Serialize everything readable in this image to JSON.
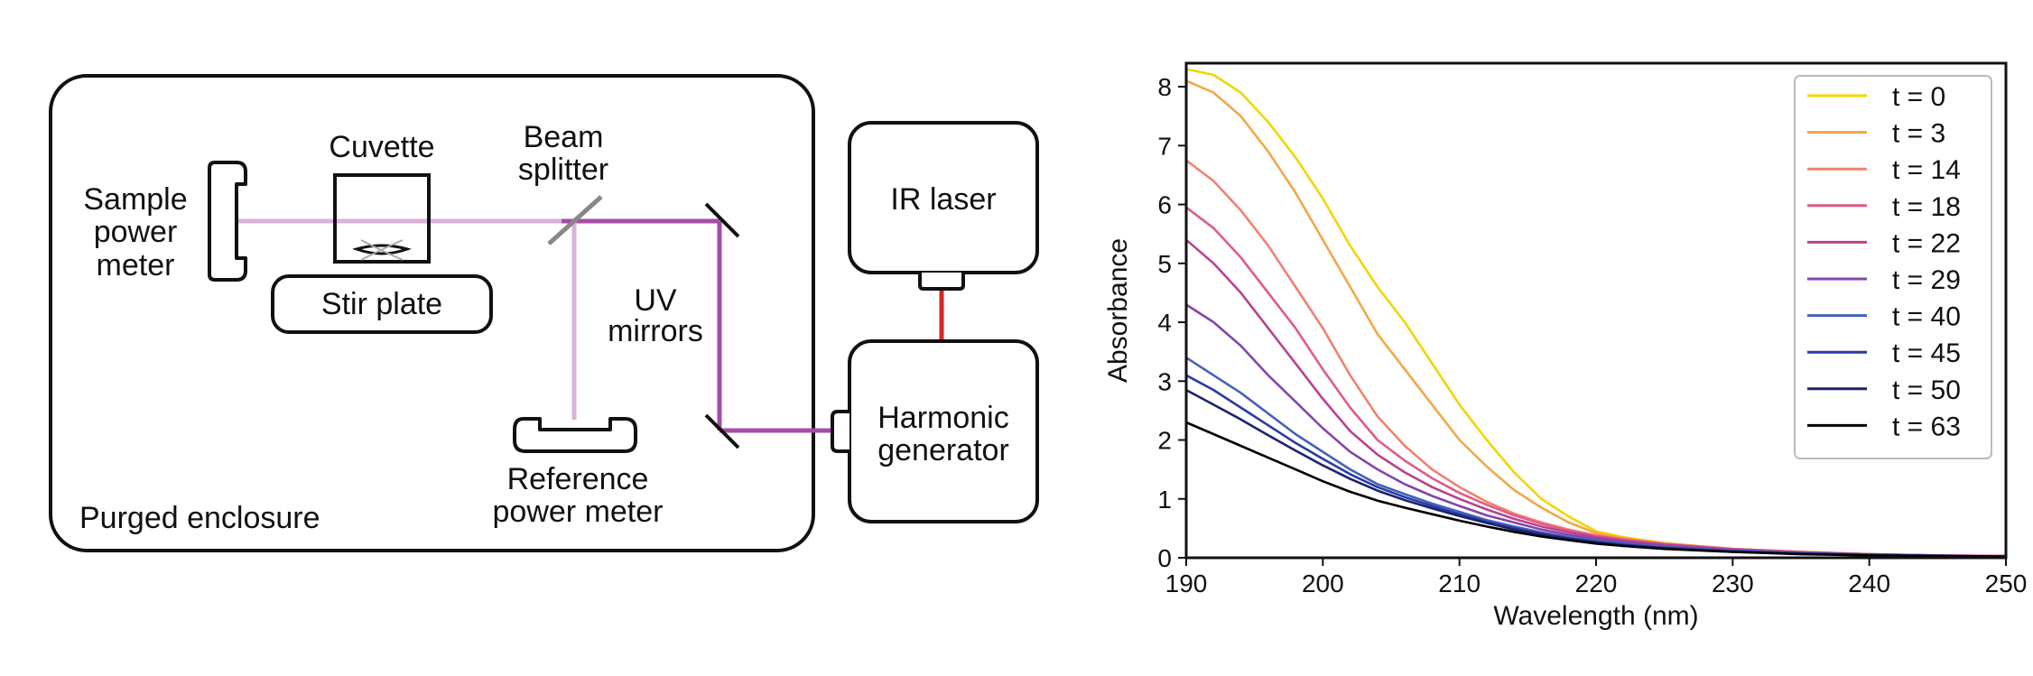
{
  "diagram": {
    "labels": {
      "cuvette": "Cuvette",
      "beam_splitter_1": "Beam",
      "beam_splitter_2": "splitter",
      "sample_pm_1": "Sample",
      "sample_pm_2": "power",
      "sample_pm_3": "meter",
      "stir_plate": "Stir plate",
      "uv_mirrors_1": "UV",
      "uv_mirrors_2": "mirrors",
      "reference_pm_1": "Reference",
      "reference_pm_2": "power meter",
      "purged_enclosure": "Purged enclosure",
      "ir_laser": "IR laser",
      "harmonic_1": "Harmonic",
      "harmonic_2": "generator"
    },
    "colors": {
      "ir_beam": "#d62728",
      "uv_beam": "#a64ca6",
      "uv_beam_light": "#d9b3d9",
      "outline": "#111111",
      "splitter": "#888888"
    }
  },
  "chart_data": {
    "type": "line",
    "xlabel": "Wavelength (nm)",
    "ylabel": "Absorbance",
    "xlim": [
      190,
      250
    ],
    "ylim": [
      0,
      8.4
    ],
    "xticks": [
      190,
      200,
      210,
      220,
      230,
      240,
      250
    ],
    "yticks": [
      0,
      1,
      2,
      3,
      4,
      5,
      6,
      7,
      8
    ],
    "grid": false,
    "legend_position": "top-right",
    "x": [
      190,
      192,
      194,
      196,
      198,
      200,
      202,
      204,
      206,
      208,
      210,
      212,
      214,
      216,
      218,
      220,
      222,
      225,
      230,
      235,
      240,
      245,
      250
    ],
    "series": [
      {
        "name": "t = 0",
        "color": "#f2d600",
        "values": [
          8.3,
          8.2,
          7.9,
          7.4,
          6.8,
          6.1,
          5.3,
          4.6,
          4.0,
          3.3,
          2.6,
          2.0,
          1.45,
          1.0,
          0.7,
          0.45,
          0.35,
          0.25,
          0.15,
          0.1,
          0.06,
          0.04,
          0.03
        ]
      },
      {
        "name": "t = 3",
        "color": "#f2a848",
        "values": [
          8.1,
          7.9,
          7.5,
          6.9,
          6.2,
          5.4,
          4.6,
          3.8,
          3.2,
          2.6,
          2.0,
          1.55,
          1.15,
          0.85,
          0.6,
          0.42,
          0.33,
          0.24,
          0.15,
          0.1,
          0.06,
          0.04,
          0.03
        ]
      },
      {
        "name": "t = 14",
        "color": "#f0826e",
        "values": [
          6.75,
          6.4,
          5.9,
          5.3,
          4.6,
          3.9,
          3.1,
          2.4,
          1.9,
          1.5,
          1.2,
          0.95,
          0.75,
          0.6,
          0.48,
          0.38,
          0.32,
          0.24,
          0.15,
          0.1,
          0.06,
          0.04,
          0.03
        ]
      },
      {
        "name": "t = 18",
        "color": "#e05a8c",
        "values": [
          5.95,
          5.6,
          5.1,
          4.5,
          3.9,
          3.2,
          2.55,
          2.0,
          1.65,
          1.35,
          1.1,
          0.9,
          0.72,
          0.58,
          0.46,
          0.37,
          0.31,
          0.23,
          0.15,
          0.1,
          0.06,
          0.04,
          0.03
        ]
      },
      {
        "name": "t = 22",
        "color": "#b8438c",
        "values": [
          5.4,
          5.0,
          4.5,
          3.9,
          3.3,
          2.7,
          2.15,
          1.75,
          1.45,
          1.2,
          1.0,
          0.82,
          0.66,
          0.53,
          0.43,
          0.35,
          0.29,
          0.22,
          0.14,
          0.09,
          0.06,
          0.04,
          0.03
        ]
      },
      {
        "name": "t = 29",
        "color": "#8445ad",
        "values": [
          4.3,
          4.0,
          3.6,
          3.1,
          2.65,
          2.2,
          1.8,
          1.5,
          1.25,
          1.05,
          0.88,
          0.72,
          0.6,
          0.48,
          0.39,
          0.32,
          0.27,
          0.2,
          0.13,
          0.08,
          0.05,
          0.04,
          0.02
        ]
      },
      {
        "name": "t = 40",
        "color": "#4462b8",
        "values": [
          3.4,
          3.1,
          2.8,
          2.45,
          2.1,
          1.8,
          1.5,
          1.25,
          1.08,
          0.92,
          0.78,
          0.64,
          0.53,
          0.43,
          0.35,
          0.29,
          0.24,
          0.18,
          0.12,
          0.08,
          0.05,
          0.03,
          0.02
        ]
      },
      {
        "name": "t = 45",
        "color": "#2a3aa6",
        "values": [
          3.1,
          2.85,
          2.55,
          2.25,
          1.95,
          1.68,
          1.42,
          1.2,
          1.03,
          0.88,
          0.74,
          0.61,
          0.5,
          0.41,
          0.33,
          0.27,
          0.22,
          0.17,
          0.11,
          0.07,
          0.05,
          0.03,
          0.02
        ]
      },
      {
        "name": "t = 50",
        "color": "#1c236e",
        "values": [
          2.85,
          2.6,
          2.35,
          2.08,
          1.82,
          1.57,
          1.34,
          1.14,
          0.98,
          0.84,
          0.71,
          0.59,
          0.48,
          0.39,
          0.32,
          0.26,
          0.21,
          0.16,
          0.1,
          0.07,
          0.04,
          0.03,
          0.02
        ]
      },
      {
        "name": "t = 63",
        "color": "#000000",
        "values": [
          2.3,
          2.1,
          1.9,
          1.7,
          1.5,
          1.3,
          1.12,
          0.97,
          0.85,
          0.74,
          0.63,
          0.53,
          0.44,
          0.36,
          0.3,
          0.24,
          0.2,
          0.15,
          0.1,
          0.06,
          0.04,
          0.03,
          0.02
        ]
      }
    ]
  }
}
